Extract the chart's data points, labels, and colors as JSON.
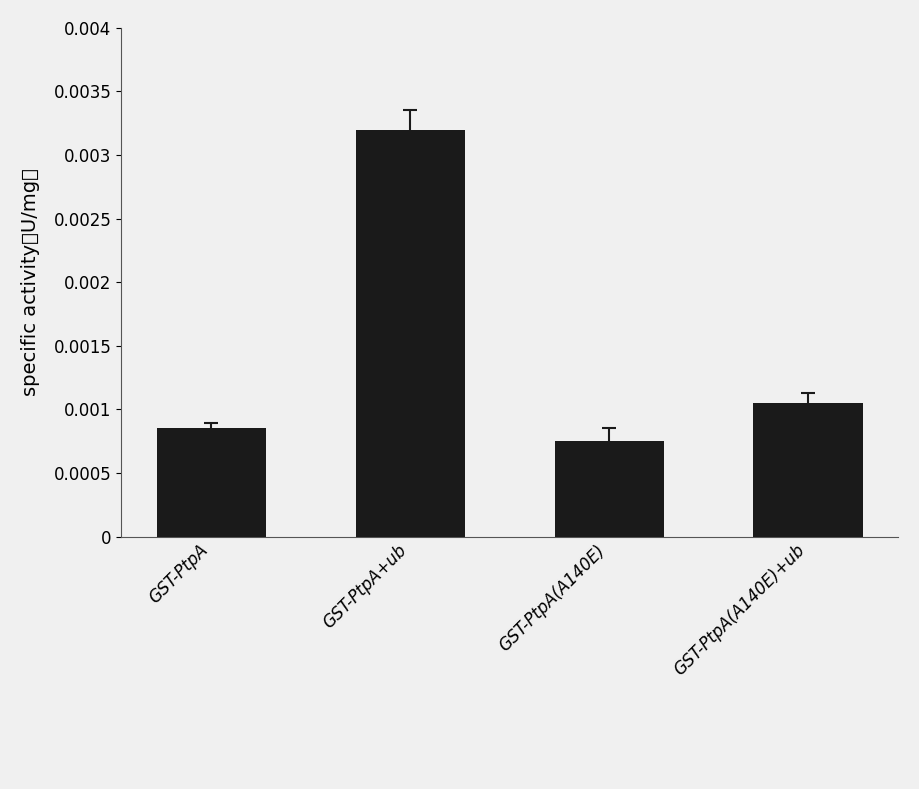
{
  "categories": [
    "GST-PtpA",
    "GST-PtpA+ub",
    "GST-PtpA(A140E)",
    "GST-PtpA(A140E)+ub"
  ],
  "values": [
    0.00085,
    0.0032,
    0.00075,
    0.00105
  ],
  "errors": [
    4e-05,
    0.00015,
    0.0001,
    8e-05
  ],
  "bar_color": "#1a1a1a",
  "bar_width": 0.55,
  "ylabel": "specific activity（U/mg）",
  "ylim": [
    0,
    0.004
  ],
  "yticks": [
    0,
    0.0005,
    0.001,
    0.0015,
    0.002,
    0.0025,
    0.003,
    0.0035,
    0.004
  ],
  "background_color": "#f0f0f0",
  "ylabel_fontsize": 14,
  "tick_fontsize": 12,
  "xlabel_fontsize": 12,
  "error_capsize": 5,
  "error_linewidth": 1.5,
  "error_color": "#1a1a1a"
}
